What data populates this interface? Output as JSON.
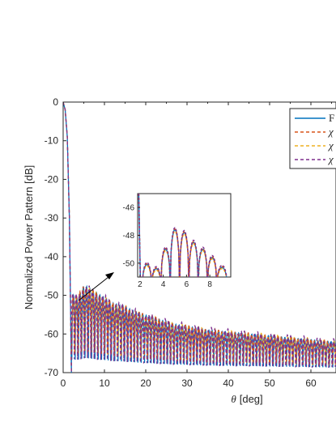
{
  "chart_data": [
    {
      "type": "line",
      "xlabel_symbol": "θ",
      "xlabel_unit": "[deg]",
      "ylabel": "Normalized Power Pattern [dB]",
      "xlim": [
        0,
        66
      ],
      "ylim": [
        -70,
        0
      ],
      "xticks": [
        0,
        10,
        20,
        30,
        40,
        50,
        60
      ],
      "yticks": [
        0,
        -10,
        -20,
        -30,
        -40,
        -50,
        -60,
        -70
      ],
      "grid": false,
      "legend_position": "top-right (cropped)",
      "legend_entries": [
        "F",
        "χ",
        "χ",
        "χ"
      ],
      "series": [
        {
          "color": "#0072BD",
          "style": "solid"
        },
        {
          "color": "#D95319",
          "style": "dashed"
        },
        {
          "color": "#EDB120",
          "style": "dashed"
        },
        {
          "color": "#7E2F8E",
          "style": "dashed"
        }
      ],
      "mainlobe": {
        "x": [
          0,
          0.5,
          1.0,
          1.5,
          2.0
        ],
        "y": [
          0,
          -2,
          -9,
          -30,
          -70
        ]
      },
      "sidelobe_peaks": {
        "x": [
          2.6,
          3.4,
          4.2,
          5.0,
          5.8,
          6.6,
          7.4,
          8.2,
          9.0,
          9.8,
          12,
          15,
          18,
          21,
          24,
          27,
          30,
          35,
          40,
          45,
          50,
          55,
          60,
          65
        ],
        "y": [
          -50,
          -50.5,
          -49,
          -47.5,
          -47.8,
          -48.5,
          -49,
          -49.5,
          -50,
          -50.5,
          -52,
          -53,
          -54.5,
          -55.5,
          -56.5,
          -57.5,
          -58,
          -59,
          -59.5,
          -60,
          -60.5,
          -61,
          -61.5,
          -62
        ]
      },
      "nulls_level": -70
    },
    {
      "type": "line",
      "role": "inset",
      "xlim": [
        1.8,
        9.8
      ],
      "ylim": [
        -51,
        -45
      ],
      "xticks": [
        2,
        4,
        6,
        8
      ],
      "yticks": [
        -46,
        -48,
        -50
      ],
      "peaks": [
        {
          "x": 2.6,
          "y": -50.1
        },
        {
          "x": 3.4,
          "y": -50.4
        },
        {
          "x": 4.2,
          "y": -49.0
        },
        {
          "x": 5.0,
          "y": -47.6
        },
        {
          "x": 5.8,
          "y": -47.8
        },
        {
          "x": 6.6,
          "y": -48.5
        },
        {
          "x": 7.4,
          "y": -49.0
        },
        {
          "x": 8.2,
          "y": -49.6
        },
        {
          "x": 9.1,
          "y": -50.3
        }
      ]
    }
  ]
}
